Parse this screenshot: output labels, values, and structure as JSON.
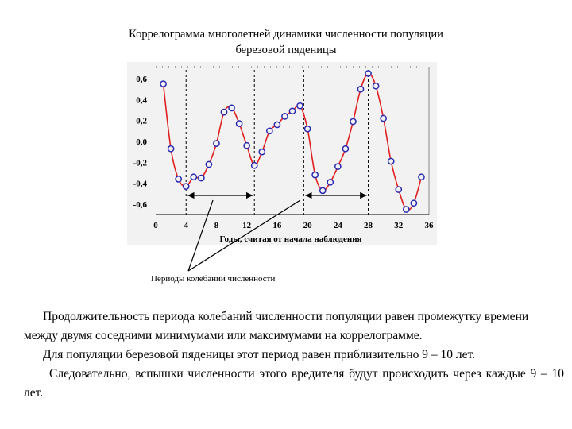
{
  "chart_data": {
    "type": "line",
    "title": [
      "Коррелограмма   многолетней динамики численности популяции",
      "березовой пяденицы"
    ],
    "xlabel": "Годы, считая от начала наблюдения",
    "ylabel": "",
    "xlim": [
      0,
      36
    ],
    "ylim": [
      -0.7,
      0.7
    ],
    "x_ticks": [
      "0",
      "4",
      "8",
      "12",
      "16",
      "20",
      "24",
      "28",
      "32",
      "36"
    ],
    "y_ticks": [
      "0,6",
      "0,4",
      "0,2",
      "0,0",
      "-0,2",
      "-0,4",
      "-0,6"
    ],
    "series": [
      {
        "x": [
          1,
          2,
          3,
          4,
          5,
          6,
          7,
          8,
          9,
          10,
          11,
          12,
          13,
          14,
          15,
          16,
          17,
          18,
          19,
          20,
          21,
          22,
          23,
          24,
          25,
          26,
          27,
          28,
          29,
          30,
          31,
          32,
          33,
          34,
          35
        ],
        "y": [
          0.55,
          -0.07,
          -0.36,
          -0.43,
          -0.34,
          -0.35,
          -0.22,
          -0.02,
          0.28,
          0.32,
          0.17,
          -0.04,
          -0.23,
          -0.1,
          0.1,
          0.16,
          0.24,
          0.29,
          0.34,
          0.12,
          -0.32,
          -0.47,
          -0.39,
          -0.24,
          -0.07,
          0.19,
          0.5,
          0.65,
          0.53,
          0.22,
          -0.19,
          -0.46,
          -0.65,
          -0.59,
          -0.34
        ]
      }
    ],
    "minima_markers_x": [
      4,
      13,
      19.5,
      28
    ],
    "period_arrows": [
      [
        4,
        13
      ],
      [
        19.5,
        28
      ]
    ],
    "annotation": "Периоды  колебаний численности",
    "colors": {
      "line": "#e02020",
      "marker": "#2a2ab0",
      "arrow": "#000000"
    }
  },
  "text": {
    "p1": "Продолжительность периода колебаний численности популяции равен промежутку времени между двумя соседними минимумами  или максимумами на коррелограмме.",
    "p2": "Для популяции березовой пяденицы этот период  равен приблизительно 9 – 10 лет.",
    "p3": "Следовательно, вспышки численности этого вредителя будут происходить через каждые 9 – 10 лет."
  }
}
